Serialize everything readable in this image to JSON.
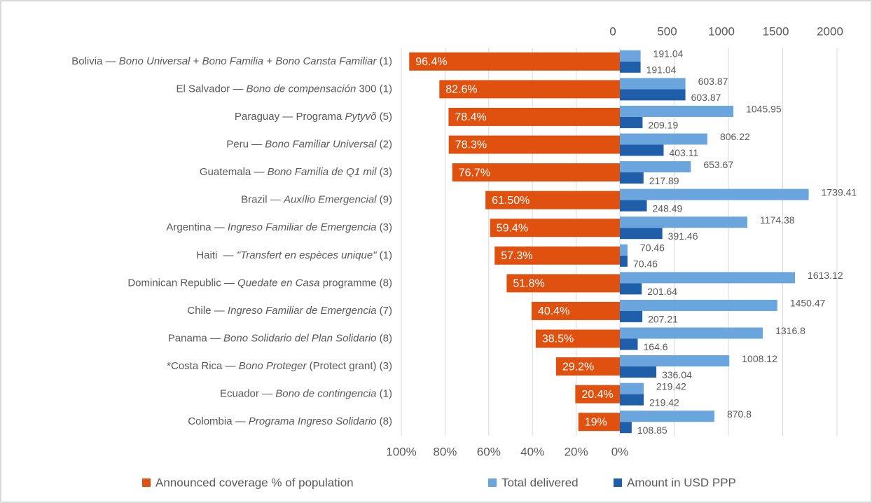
{
  "chart_data": {
    "type": "butterfly-bar",
    "categories": [
      [
        {
          "text": "Bolivia — "
        },
        {
          "text": "Bono Universal",
          "italic": true
        },
        {
          "text": " + "
        },
        {
          "text": "Bono Familia",
          "italic": true
        },
        {
          "text": " + "
        },
        {
          "text": "Bono Cansta Familiar",
          "italic": true
        },
        {
          "text": " (1)"
        }
      ],
      [
        {
          "text": "El Salvador — "
        },
        {
          "text": "Bono de compensación",
          "italic": true
        },
        {
          "text": " 300 (1)"
        }
      ],
      [
        {
          "text": "Paraguay — Programa "
        },
        {
          "text": "Pytyvõ",
          "italic": true
        },
        {
          "text": " (5)"
        }
      ],
      [
        {
          "text": "Peru — "
        },
        {
          "text": "Bono Familiar Universal",
          "italic": true
        },
        {
          "text": " (2)"
        }
      ],
      [
        {
          "text": "Guatemala — "
        },
        {
          "text": "Bono Familia de Q1 mil",
          "italic": true
        },
        {
          "text": " (3)"
        }
      ],
      [
        {
          "text": "Brazil — "
        },
        {
          "text": "Auxílio Emergencial",
          "italic": true
        },
        {
          "text": " (9)"
        }
      ],
      [
        {
          "text": "Argentina — "
        },
        {
          "text": "Ingreso Familiar de Emergencia",
          "italic": true
        },
        {
          "text": " (3)"
        }
      ],
      [
        {
          "text": "Haiti  — "
        },
        {
          "text": "\"Transfert en espèces unique\"",
          "italic": true
        },
        {
          "text": " (1)"
        }
      ],
      [
        {
          "text": "Dominican Republic — "
        },
        {
          "text": "Quedate en Casa",
          "italic": true
        },
        {
          "text": " programme (8)"
        }
      ],
      [
        {
          "text": "Chile — "
        },
        {
          "text": "Ingreso Familiar de Emergencia",
          "italic": true
        },
        {
          "text": " (7)"
        }
      ],
      [
        {
          "text": "Panama — "
        },
        {
          "text": "Bono Solidario del Plan Solidario",
          "italic": true
        },
        {
          "text": " (8)"
        }
      ],
      [
        {
          "text": "*Costa Rica — "
        },
        {
          "text": "Bono Proteger",
          "italic": true
        },
        {
          "text": " (Protect grant) (3)"
        }
      ],
      [
        {
          "text": "Ecuador — "
        },
        {
          "text": "Bono de contingencia",
          "italic": true
        },
        {
          "text": " (1)"
        }
      ],
      [
        {
          "text": "Colombia — "
        },
        {
          "text": "Programa Ingreso Solidario",
          "italic": true
        },
        {
          "text": " (8)"
        }
      ]
    ],
    "series": [
      {
        "name": "Announced coverage % of population",
        "color": "#e0510f",
        "axis": "x",
        "values": [
          96.4,
          82.6,
          78.4,
          78.3,
          76.7,
          61.5,
          59.4,
          57.3,
          51.8,
          40.4,
          38.5,
          29.2,
          20.4,
          19
        ],
        "value_labels": [
          "96.4%",
          "82.6%",
          "78.4%",
          "78.3%",
          "76.7%",
          "61.50%",
          "59.4%",
          "57.3%",
          "51.8%",
          "40.4%",
          "38.5%",
          "29.2%",
          "20.4%",
          "19%"
        ]
      },
      {
        "name": "Total delivered",
        "color": "#6ba5dd",
        "axis": "x2",
        "values": [
          191.04,
          603.87,
          1045.95,
          806.22,
          653.67,
          1739.41,
          1174.38,
          70.46,
          1613.12,
          1450.47,
          1316.8,
          1008.12,
          219.42,
          870.8
        ]
      },
      {
        "name": "Amount in USD PPP",
        "color": "#1f5ea8",
        "axis": "x2",
        "values": [
          191.04,
          603.87,
          209.19,
          403.11,
          217.89,
          248.49,
          391.46,
          70.46,
          201.64,
          207.21,
          164.6,
          336.04,
          219.42,
          108.85
        ]
      }
    ],
    "xlim": [
      0,
      100
    ],
    "xticks": [
      {
        "value": 100,
        "label": "100%"
      },
      {
        "value": 80,
        "label": "80%"
      },
      {
        "value": 60,
        "label": "60%"
      },
      {
        "value": 40,
        "label": "40%"
      },
      {
        "value": 20,
        "label": "20%"
      },
      {
        "value": 0,
        "label": "0%"
      }
    ],
    "x2lim": [
      0,
      2000
    ],
    "x2ticks": [
      0,
      500,
      1000,
      1500,
      2000
    ],
    "grid": true,
    "legend": "bottom"
  }
}
